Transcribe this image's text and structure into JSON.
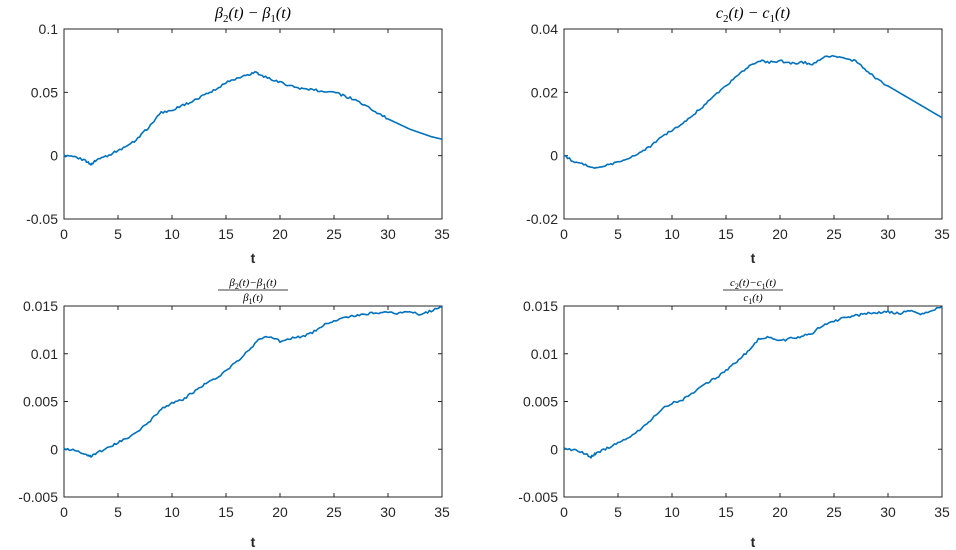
{
  "chart_data": [
    {
      "type": "line",
      "title": "β2(t) − β1(t)",
      "xlabel": "t",
      "xlim": [
        0,
        35
      ],
      "ylim": [
        -0.05,
        0.1
      ],
      "xticks": [
        "0",
        "5",
        "10",
        "15",
        "20",
        "25",
        "30",
        "35"
      ],
      "yticks": [
        "-0.05",
        "0",
        "0.05",
        "0.1"
      ],
      "series": [
        {
          "color": "#0072BD",
          "x": [
            0,
            1,
            2,
            2.5,
            3,
            4,
            5,
            6,
            7,
            8,
            9,
            10,
            11,
            12,
            13,
            14,
            15,
            16,
            17,
            17.8,
            18,
            19,
            20,
            21,
            22,
            23,
            24,
            25,
            26,
            27,
            28,
            29,
            30,
            31,
            32,
            33,
            34,
            35
          ],
          "y": [
            0.0,
            -0.001,
            -0.004,
            -0.007,
            -0.003,
            0.0,
            0.004,
            0.008,
            0.015,
            0.024,
            0.034,
            0.036,
            0.04,
            0.043,
            0.048,
            0.052,
            0.058,
            0.061,
            0.064,
            0.066,
            0.064,
            0.061,
            0.058,
            0.055,
            0.053,
            0.052,
            0.051,
            0.05,
            0.047,
            0.044,
            0.039,
            0.034,
            0.029,
            0.025,
            0.021,
            0.018,
            0.015,
            0.013
          ]
        }
      ]
    },
    {
      "type": "line",
      "title": "c2(t) − c1(t)",
      "xlabel": "t",
      "xlim": [
        0,
        35
      ],
      "ylim": [
        -0.02,
        0.04
      ],
      "xticks": [
        "0",
        "5",
        "10",
        "15",
        "20",
        "25",
        "30",
        "35"
      ],
      "yticks": [
        "-0.02",
        "0",
        "0.02",
        "0.04"
      ],
      "series": [
        {
          "color": "#0072BD",
          "x": [
            0,
            1,
            2,
            3,
            4,
            5,
            6,
            7,
            8,
            9,
            10,
            11,
            12,
            13,
            14,
            15,
            16,
            17,
            18,
            19,
            20,
            21,
            22,
            23,
            24,
            25,
            26,
            27,
            28,
            29,
            30,
            31,
            32,
            33,
            34,
            35
          ],
          "y": [
            0.0,
            -0.002,
            -0.003,
            -0.004,
            -0.003,
            -0.002,
            -0.001,
            0.001,
            0.003,
            0.006,
            0.008,
            0.01,
            0.013,
            0.016,
            0.019,
            0.022,
            0.025,
            0.028,
            0.03,
            0.0295,
            0.03,
            0.029,
            0.0295,
            0.029,
            0.031,
            0.0315,
            0.0305,
            0.03,
            0.027,
            0.024,
            0.022,
            0.02,
            0.018,
            0.016,
            0.014,
            0.012
          ]
        }
      ]
    },
    {
      "type": "line",
      "title": "(β2(t) − β1(t)) / β1(t)",
      "xlabel": "t",
      "xlim": [
        0,
        35
      ],
      "ylim": [
        -0.005,
        0.015
      ],
      "xticks": [
        "0",
        "5",
        "10",
        "15",
        "20",
        "25",
        "30",
        "35"
      ],
      "yticks": [
        "-0.005",
        "0",
        "0.005",
        "0.01",
        "0.015"
      ],
      "series": [
        {
          "color": "#0072BD",
          "x": [
            0,
            1,
            2,
            2.5,
            3,
            4,
            5,
            6,
            7,
            8,
            9,
            10,
            11,
            12,
            13,
            14,
            15,
            16,
            17,
            18,
            19,
            20,
            21,
            22,
            23,
            24,
            25,
            26,
            27,
            28,
            29,
            30,
            31,
            32,
            33,
            34,
            35
          ],
          "y": [
            0.0,
            -0.0001,
            -0.0005,
            -0.0008,
            -0.0004,
            0.0001,
            0.0007,
            0.0012,
            0.002,
            0.003,
            0.0042,
            0.0048,
            0.0052,
            0.006,
            0.0068,
            0.0074,
            0.0082,
            0.0092,
            0.0102,
            0.0115,
            0.0118,
            0.0113,
            0.0116,
            0.0118,
            0.0122,
            0.013,
            0.0134,
            0.0138,
            0.014,
            0.0142,
            0.0143,
            0.0144,
            0.0142,
            0.0145,
            0.0141,
            0.0145,
            0.0149
          ]
        }
      ]
    },
    {
      "type": "line",
      "title": "(c2(t) − c1(t)) / c1(t)",
      "xlabel": "t",
      "xlim": [
        0,
        35
      ],
      "ylim": [
        -0.005,
        0.015
      ],
      "xticks": [
        "0",
        "5",
        "10",
        "15",
        "20",
        "25",
        "30",
        "35"
      ],
      "yticks": [
        "-0.005",
        "0",
        "0.005",
        "0.01",
        "0.015"
      ],
      "series": [
        {
          "color": "#0072BD",
          "x": [
            0,
            1,
            2,
            2.5,
            3,
            4,
            5,
            6,
            7,
            8,
            9,
            10,
            11,
            12,
            13,
            14,
            15,
            16,
            17,
            18,
            19,
            20,
            21,
            22,
            23,
            24,
            25,
            26,
            27,
            28,
            29,
            30,
            31,
            32,
            33,
            34,
            35
          ],
          "y": [
            0.0,
            -0.0001,
            -0.0005,
            -0.0008,
            -0.0004,
            0.0001,
            0.0007,
            0.0012,
            0.002,
            0.003,
            0.0042,
            0.0048,
            0.0052,
            0.006,
            0.0068,
            0.0074,
            0.0082,
            0.0092,
            0.0102,
            0.0115,
            0.0118,
            0.0113,
            0.0116,
            0.0118,
            0.0122,
            0.013,
            0.0134,
            0.0138,
            0.014,
            0.0142,
            0.0143,
            0.0144,
            0.0142,
            0.0145,
            0.0141,
            0.0145,
            0.0149
          ]
        }
      ]
    }
  ]
}
